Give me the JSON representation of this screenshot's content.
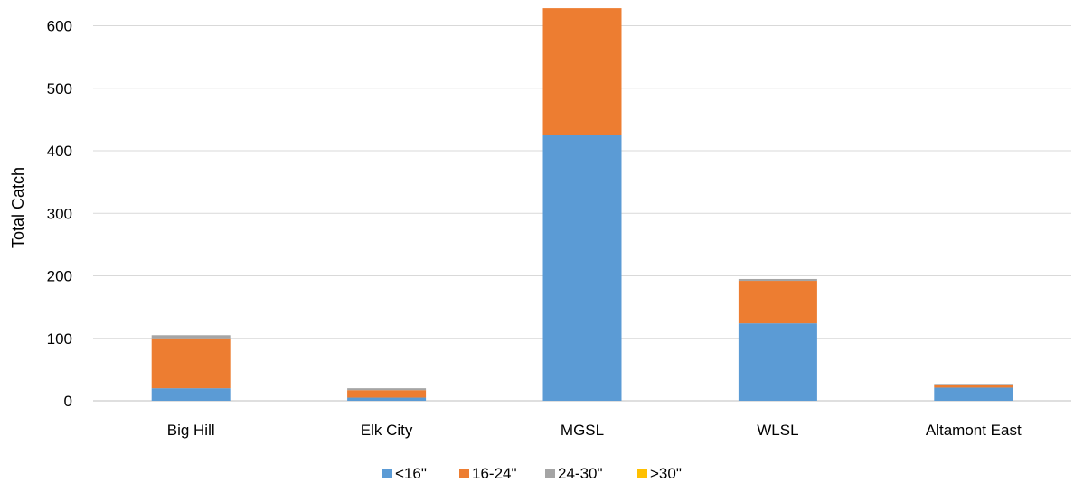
{
  "chart_data": {
    "type": "bar",
    "stacked": true,
    "title": "",
    "xlabel": "",
    "ylabel": "Total Catch",
    "ylim": [
      0,
      600
    ],
    "yticks": [
      0,
      100,
      200,
      300,
      400,
      500,
      600
    ],
    "grid": true,
    "legend_position": "bottom",
    "categories": [
      "Big Hill",
      "Elk City",
      "MGSL",
      "WLSL",
      "Altamont East"
    ],
    "series": [
      {
        "name": "<16\"",
        "color": "#5B9BD5",
        "values": [
          20,
          5,
          425,
          124,
          21
        ]
      },
      {
        "name": "16-24\"",
        "color": "#ED7D31",
        "values": [
          80,
          12,
          203,
          68,
          5
        ]
      },
      {
        "name": "24-30\"",
        "color": "#A5A5A5",
        "values": [
          5,
          3,
          0,
          3,
          1
        ]
      },
      {
        "name": ">30\"",
        "color": "#FFC000",
        "values": [
          0,
          0,
          0,
          0,
          0
        ]
      }
    ]
  }
}
